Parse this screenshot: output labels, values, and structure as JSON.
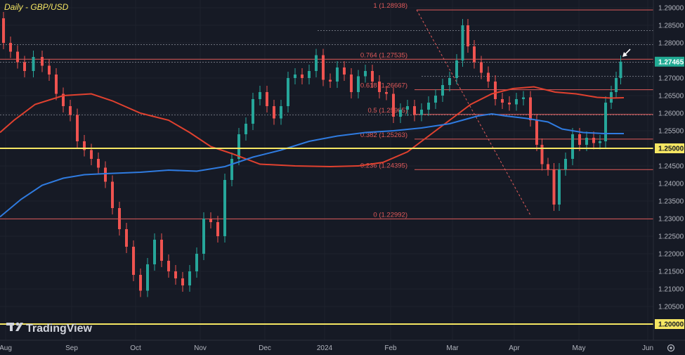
{
  "title": "Daily - GBP/USD",
  "logo": "TradingView",
  "colors": {
    "background": "#161a25",
    "up": "#26a69a",
    "down": "#ef5350",
    "fib": "#e05a5a",
    "ma100": "#e0412f",
    "ma200": "#2f7be0",
    "highlight": "#f5e663",
    "last_badge": "#22ab94"
  },
  "chart_data": {
    "type": "candlestick",
    "ylim": [
      1.2,
      1.293
    ],
    "y_ticks": [
      "1.29000",
      "1.28500",
      "1.28000",
      "1.27000",
      "1.26500",
      "1.26000",
      "1.25500",
      "1.25000",
      "1.24500",
      "1.24000",
      "1.23500",
      "1.23000",
      "1.22500",
      "1.22000",
      "1.21500",
      "1.21000",
      "1.20500",
      "1.20000"
    ],
    "x_labels": [
      "Aug",
      "Sep",
      "Oct",
      "Nov",
      "Dec",
      "2024",
      "Feb",
      "Mar",
      "Apr",
      "May",
      "Jun"
    ],
    "last_price": "1.27465",
    "highlight_levels": [
      {
        "value": 1.25,
        "label": "1.25000"
      },
      {
        "value": 1.2,
        "label": "1.20000"
      }
    ],
    "fib_levels": [
      {
        "ratio": "1",
        "value": 1.28938,
        "label": "1 (1.28938)"
      },
      {
        "ratio": "0.764",
        "value": 1.27535,
        "label": "0.764 (1.27535)"
      },
      {
        "ratio": "0.618",
        "value": 1.26667,
        "label": "0.618 (1.26667)"
      },
      {
        "ratio": "0.5",
        "value": 1.25965,
        "label": "0.5 (1.25965)"
      },
      {
        "ratio": "0.382",
        "value": 1.25263,
        "label": "0.382 (1.25263)"
      },
      {
        "ratio": "0.236",
        "value": 1.24395,
        "label": "0.236 (1.24395)"
      },
      {
        "ratio": "0",
        "value": 1.22992,
        "label": "0 (1.22992)"
      }
    ],
    "ma100": [
      [
        0,
        1.2545
      ],
      [
        20,
        1.258
      ],
      [
        50,
        1.2625
      ],
      [
        90,
        1.265
      ],
      [
        130,
        1.2655
      ],
      [
        160,
        1.2635
      ],
      [
        200,
        1.26
      ],
      [
        240,
        1.258
      ],
      [
        270,
        1.2545
      ],
      [
        300,
        1.2505
      ],
      [
        330,
        1.2485
      ],
      [
        370,
        1.2455
      ],
      [
        420,
        1.245
      ],
      [
        470,
        1.2448
      ],
      [
        510,
        1.245
      ],
      [
        545,
        1.246
      ],
      [
        580,
        1.249
      ],
      [
        610,
        1.2535
      ],
      [
        640,
        1.258
      ],
      [
        670,
        1.2625
      ],
      [
        700,
        1.2655
      ],
      [
        730,
        1.267
      ],
      [
        760,
        1.2675
      ],
      [
        790,
        1.266
      ],
      [
        820,
        1.2655
      ],
      [
        850,
        1.2645
      ],
      [
        870,
        1.2643
      ],
      [
        888,
        1.2644
      ]
    ],
    "ma200": [
      [
        0,
        1.2305
      ],
      [
        30,
        1.2355
      ],
      [
        60,
        1.2395
      ],
      [
        90,
        1.2415
      ],
      [
        120,
        1.2425
      ],
      [
        150,
        1.2428
      ],
      [
        200,
        1.2432
      ],
      [
        240,
        1.2438
      ],
      [
        280,
        1.2435
      ],
      [
        320,
        1.2448
      ],
      [
        360,
        1.2475
      ],
      [
        400,
        1.2495
      ],
      [
        440,
        1.252
      ],
      [
        480,
        1.2535
      ],
      [
        520,
        1.2545
      ],
      [
        560,
        1.255
      ],
      [
        600,
        1.2558
      ],
      [
        640,
        1.257
      ],
      [
        680,
        1.2592
      ],
      [
        700,
        1.2598
      ],
      [
        720,
        1.2592
      ],
      [
        750,
        1.2585
      ],
      [
        780,
        1.2575
      ],
      [
        800,
        1.2555
      ],
      [
        830,
        1.2545
      ],
      [
        860,
        1.2542
      ],
      [
        888,
        1.2542
      ]
    ]
  }
}
